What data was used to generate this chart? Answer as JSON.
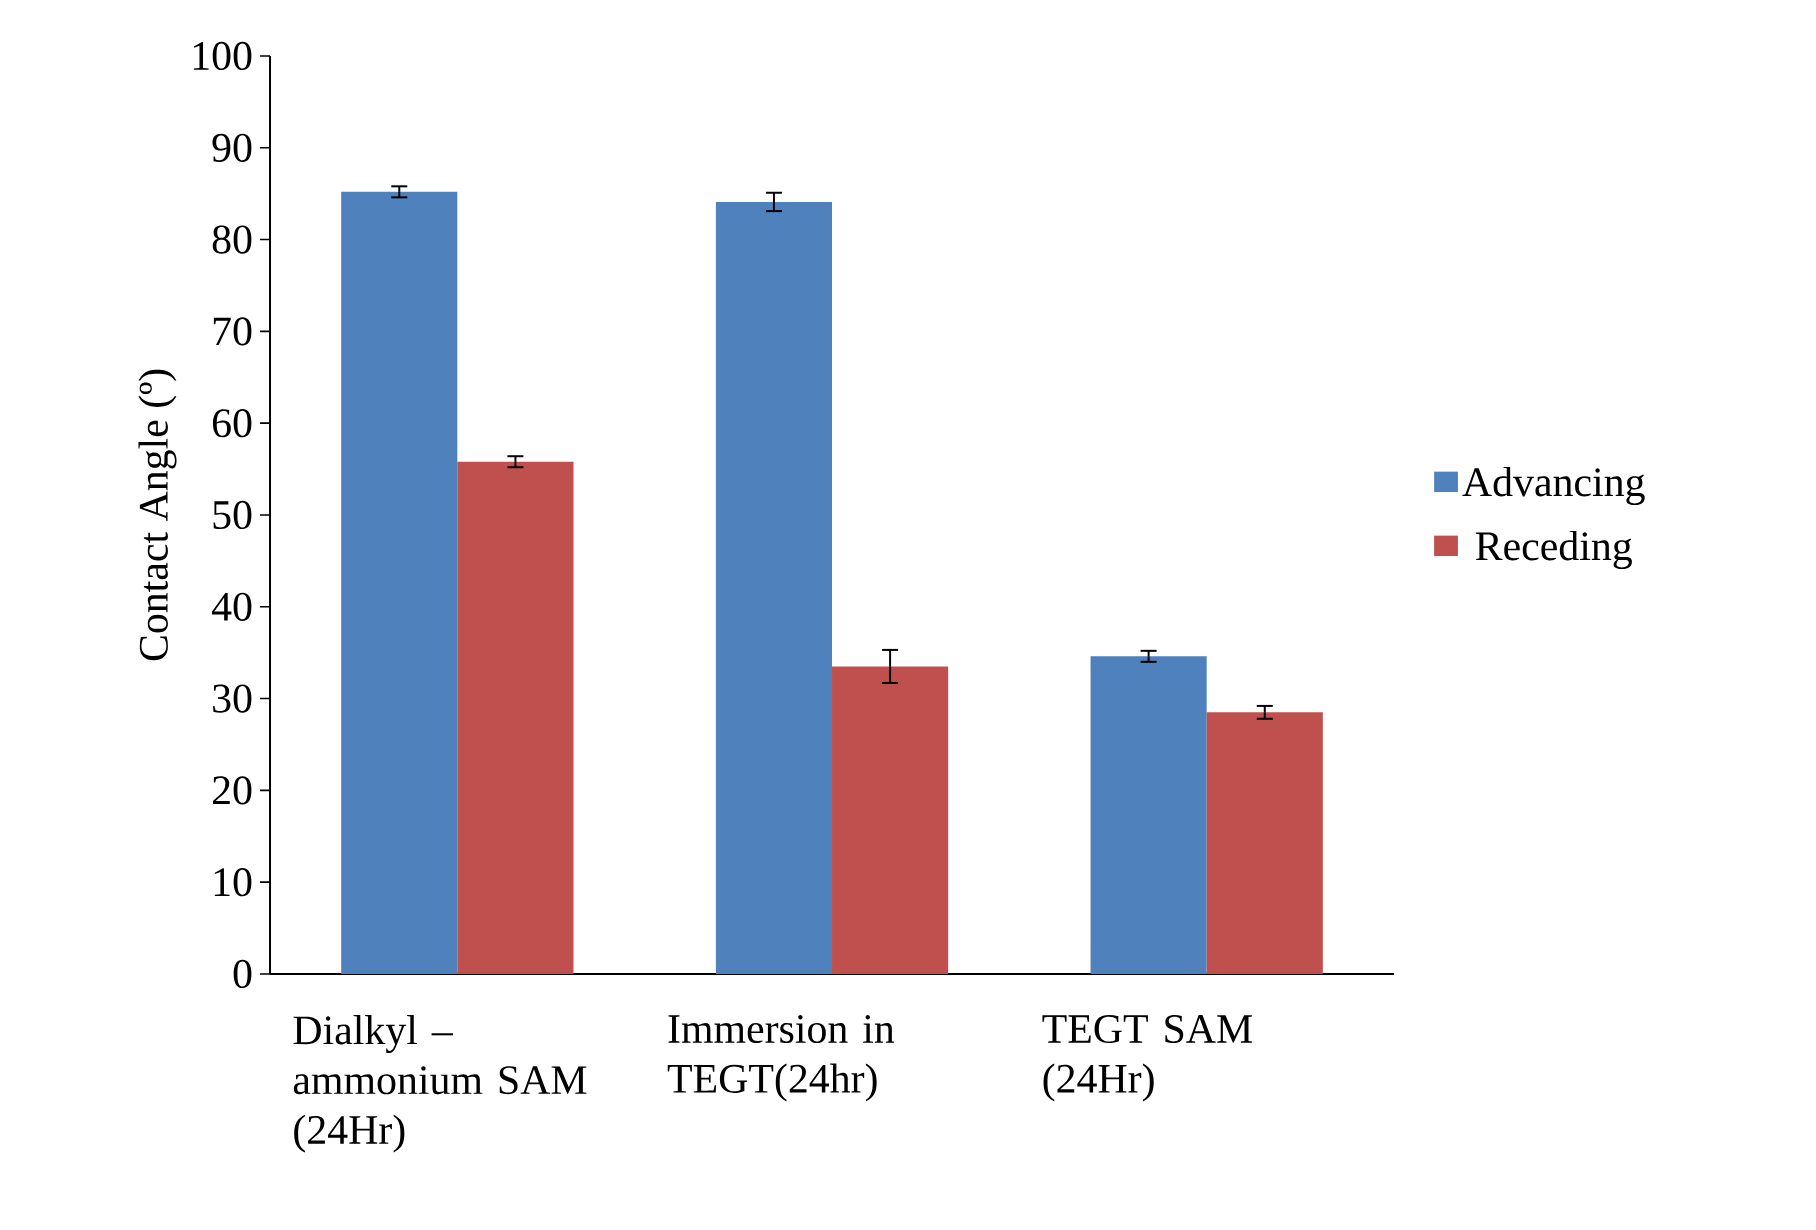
{
  "chart_data": {
    "type": "bar",
    "ylabel": "Contact Angle (º)",
    "categories": [
      "Dialkyl – ammonium SAM (24Hr)",
      "Immersion in TEGT(24hr)",
      "TEGT SAM (24Hr)"
    ],
    "series": [
      {
        "name": "Advancing",
        "color": "#4f81bd",
        "values": [
          85.2,
          84.1,
          34.6
        ],
        "errors": [
          0.6,
          1.0,
          0.6
        ]
      },
      {
        "name": "Receding",
        "color": "#c0504d",
        "values": [
          55.8,
          33.5,
          28.5
        ],
        "errors": [
          0.6,
          1.8,
          0.7
        ]
      }
    ],
    "ylim": [
      0,
      100
    ],
    "yticks": [
      0,
      10,
      20,
      30,
      40,
      50,
      60,
      70,
      80,
      90,
      100
    ],
    "legend": "right",
    "grid": false
  }
}
